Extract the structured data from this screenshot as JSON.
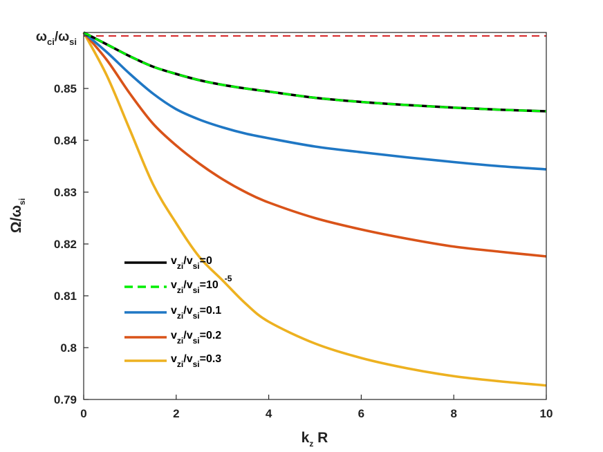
{
  "chart_data": {
    "type": "line",
    "xlabel": {
      "main": "k",
      "sub": "z",
      "tail": " R"
    },
    "ylabel": {
      "main": "Ω/ω",
      "sub": "si"
    },
    "xlim": [
      0,
      10
    ],
    "ylim": [
      0.79,
      0.8608
    ],
    "xticks": [
      0,
      2,
      4,
      6,
      8,
      10
    ],
    "xtick_labels": [
      "0",
      "2",
      "4",
      "6",
      "8",
      "10"
    ],
    "yticks": [
      0.79,
      0.8,
      0.81,
      0.82,
      0.83,
      0.84,
      0.85
    ],
    "ytick_labels": [
      "0.79",
      "0.8",
      "0.81",
      "0.82",
      "0.83",
      "0.84",
      "0.85"
    ],
    "top_tick": {
      "value": 0.8608,
      "main1": "ω",
      "sub1": "ci",
      "slash": "/ω",
      "sub2": "si"
    },
    "reference_line": {
      "y": 0.8608,
      "color": "#d62728",
      "style": "dashed"
    },
    "x": [
      0,
      0.5,
      1,
      1.5,
      2,
      2.5,
      3,
      3.5,
      4,
      5,
      6,
      7,
      8,
      9,
      10
    ],
    "series": [
      {
        "color": "#000000",
        "style": "solid",
        "values": [
          0.8608,
          0.8585,
          0.8562,
          0.8542,
          0.8528,
          0.8516,
          0.8507,
          0.85,
          0.8494,
          0.8482,
          0.8474,
          0.8468,
          0.8463,
          0.8459,
          0.8456
        ]
      },
      {
        "color": "#00ee00",
        "style": "dashed",
        "values": [
          0.8608,
          0.8585,
          0.8562,
          0.8542,
          0.8528,
          0.8516,
          0.8507,
          0.85,
          0.8494,
          0.8482,
          0.8474,
          0.8468,
          0.8463,
          0.8459,
          0.8456
        ]
      },
      {
        "color": "#1f77c4",
        "style": "solid",
        "values": [
          0.8608,
          0.857,
          0.8528,
          0.849,
          0.846,
          0.844,
          0.8425,
          0.8413,
          0.8404,
          0.8388,
          0.8377,
          0.8367,
          0.8358,
          0.835,
          0.8344
        ]
      },
      {
        "color": "#d95319",
        "style": "solid",
        "values": [
          0.8608,
          0.8555,
          0.849,
          0.8432,
          0.839,
          0.8355,
          0.8325,
          0.83,
          0.828,
          0.825,
          0.8228,
          0.821,
          0.8195,
          0.8185,
          0.8176
        ]
      },
      {
        "color": "#edb120",
        "style": "solid",
        "values": [
          0.8608,
          0.8525,
          0.842,
          0.8315,
          0.824,
          0.8175,
          0.813,
          0.8085,
          0.805,
          0.8008,
          0.798,
          0.796,
          0.7945,
          0.7935,
          0.7927
        ]
      }
    ],
    "legend": {
      "position": "lower-left",
      "entries": [
        {
          "main1": "v",
          "sub1": "zi",
          "slash": "/v",
          "sub2": "si",
          "tail": "=0",
          "sup": ""
        },
        {
          "main1": "v",
          "sub1": "zi",
          "slash": "/v",
          "sub2": "si",
          "tail": "=10",
          "sup": "-5"
        },
        {
          "main1": "v",
          "sub1": "zi",
          "slash": "/v",
          "sub2": "si",
          "tail": "=0.1",
          "sup": ""
        },
        {
          "main1": "v",
          "sub1": "zi",
          "slash": "/v",
          "sub2": "si",
          "tail": "=0.2",
          "sup": ""
        },
        {
          "main1": "v",
          "sub1": "zi",
          "slash": "/v",
          "sub2": "si",
          "tail": "=0.3",
          "sup": ""
        }
      ]
    },
    "grid": false
  }
}
